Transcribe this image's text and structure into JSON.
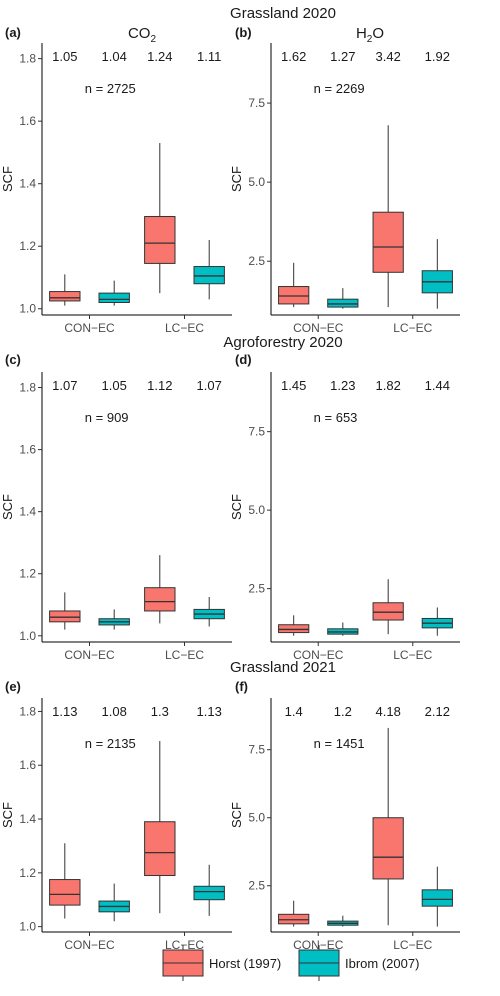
{
  "titles": {
    "row1": "Grassland 2020",
    "row2": "Agroforestry 2020",
    "row3": "Grassland 2021",
    "col1_prefix": "CO",
    "col1_sub": "2",
    "col2_prefix": "H",
    "col2_sub": "2",
    "col2_suffix": "O"
  },
  "legend": [
    {
      "label": "Horst (1997)",
      "color": "#F8766D"
    },
    {
      "label": "Ibrom (2007)",
      "color": "#00BFC4"
    }
  ],
  "chart_data": [
    {
      "type": "box",
      "panel": "(a)",
      "ylabel": "SCF",
      "ylim": [
        0.98,
        1.85
      ],
      "yticks": [
        "1.0",
        "1.2",
        "1.4",
        "1.6",
        "1.8"
      ],
      "categories": [
        "CON−EC",
        "LC−EC"
      ],
      "n_label": "n = 2725",
      "means": [
        "1.05",
        "1.04",
        "1.24",
        "1.11"
      ],
      "boxes": [
        {
          "category": "CON−EC",
          "series": "Horst (1997)",
          "lower_whisker": 1.01,
          "q1": 1.025,
          "median": 1.035,
          "q3": 1.055,
          "upper_whisker": 1.11
        },
        {
          "category": "CON−EC",
          "series": "Ibrom (2007)",
          "lower_whisker": 1.01,
          "q1": 1.02,
          "median": 1.03,
          "q3": 1.05,
          "upper_whisker": 1.09
        },
        {
          "category": "LC−EC",
          "series": "Horst (1997)",
          "lower_whisker": 1.05,
          "q1": 1.145,
          "median": 1.21,
          "q3": 1.295,
          "upper_whisker": 1.53
        },
        {
          "category": "LC−EC",
          "series": "Ibrom (2007)",
          "lower_whisker": 1.03,
          "q1": 1.08,
          "median": 1.105,
          "q3": 1.135,
          "upper_whisker": 1.22
        }
      ]
    },
    {
      "type": "box",
      "panel": "(b)",
      "ylabel": "SCF",
      "ylim": [
        0.8,
        9.4
      ],
      "yticks": [
        "2.5",
        "5.0",
        "7.5"
      ],
      "categories": [
        "CON−EC",
        "LC−EC"
      ],
      "n_label": "n = 2269",
      "means": [
        "1.62",
        "1.27",
        "3.42",
        "1.92"
      ],
      "boxes": [
        {
          "category": "CON−EC",
          "series": "Horst (1997)",
          "lower_whisker": 1.05,
          "q1": 1.15,
          "median": 1.4,
          "q3": 1.7,
          "upper_whisker": 2.45
        },
        {
          "category": "CON−EC",
          "series": "Ibrom (2007)",
          "lower_whisker": 1.0,
          "q1": 1.05,
          "median": 1.15,
          "q3": 1.3,
          "upper_whisker": 1.65
        },
        {
          "category": "LC−EC",
          "series": "Horst (1997)",
          "lower_whisker": 1.05,
          "q1": 2.15,
          "median": 2.95,
          "q3": 4.05,
          "upper_whisker": 6.8
        },
        {
          "category": "LC−EC",
          "series": "Ibrom (2007)",
          "lower_whisker": 1.0,
          "q1": 1.5,
          "median": 1.85,
          "q3": 2.2,
          "upper_whisker": 3.2
        }
      ]
    },
    {
      "type": "box",
      "panel": "(c)",
      "ylabel": "SCF",
      "ylim": [
        0.98,
        1.85
      ],
      "yticks": [
        "1.0",
        "1.2",
        "1.4",
        "1.6",
        "1.8"
      ],
      "categories": [
        "CON−EC",
        "LC−EC"
      ],
      "n_label": "n = 909",
      "means": [
        "1.07",
        "1.05",
        "1.12",
        "1.07"
      ],
      "boxes": [
        {
          "category": "CON−EC",
          "series": "Horst (1997)",
          "lower_whisker": 1.02,
          "q1": 1.045,
          "median": 1.06,
          "q3": 1.08,
          "upper_whisker": 1.14
        },
        {
          "category": "CON−EC",
          "series": "Ibrom (2007)",
          "lower_whisker": 1.02,
          "q1": 1.035,
          "median": 1.045,
          "q3": 1.055,
          "upper_whisker": 1.085
        },
        {
          "category": "LC−EC",
          "series": "Horst (1997)",
          "lower_whisker": 1.04,
          "q1": 1.08,
          "median": 1.11,
          "q3": 1.155,
          "upper_whisker": 1.26
        },
        {
          "category": "LC−EC",
          "series": "Ibrom (2007)",
          "lower_whisker": 1.03,
          "q1": 1.055,
          "median": 1.07,
          "q3": 1.085,
          "upper_whisker": 1.125
        }
      ]
    },
    {
      "type": "box",
      "panel": "(d)",
      "ylabel": "SCF",
      "ylim": [
        0.8,
        9.4
      ],
      "yticks": [
        "2.5",
        "5.0",
        "7.5"
      ],
      "categories": [
        "CON−EC",
        "LC−EC"
      ],
      "n_label": "n = 653",
      "means": [
        "1.45",
        "1.23",
        "1.82",
        "1.44"
      ],
      "boxes": [
        {
          "category": "CON−EC",
          "series": "Horst (1997)",
          "lower_whisker": 1.0,
          "q1": 1.1,
          "median": 1.2,
          "q3": 1.35,
          "upper_whisker": 1.65
        },
        {
          "category": "CON−EC",
          "series": "Ibrom (2007)",
          "lower_whisker": 1.0,
          "q1": 1.05,
          "median": 1.12,
          "q3": 1.22,
          "upper_whisker": 1.42
        },
        {
          "category": "LC−EC",
          "series": "Horst (1997)",
          "lower_whisker": 1.05,
          "q1": 1.5,
          "median": 1.75,
          "q3": 2.05,
          "upper_whisker": 2.8
        },
        {
          "category": "LC−EC",
          "series": "Ibrom (2007)",
          "lower_whisker": 1.0,
          "q1": 1.25,
          "median": 1.4,
          "q3": 1.55,
          "upper_whisker": 1.9
        }
      ]
    },
    {
      "type": "box",
      "panel": "(e)",
      "ylabel": "SCF",
      "ylim": [
        0.98,
        1.85
      ],
      "yticks": [
        "1.0",
        "1.2",
        "1.4",
        "1.6",
        "1.8"
      ],
      "categories": [
        "CON−EC",
        "LC−EC"
      ],
      "n_label": "n = 2135",
      "means": [
        "1.13",
        "1.08",
        "1.3",
        "1.13"
      ],
      "boxes": [
        {
          "category": "CON−EC",
          "series": "Horst (1997)",
          "lower_whisker": 1.03,
          "q1": 1.08,
          "median": 1.12,
          "q3": 1.175,
          "upper_whisker": 1.31
        },
        {
          "category": "CON−EC",
          "series": "Ibrom (2007)",
          "lower_whisker": 1.02,
          "q1": 1.055,
          "median": 1.075,
          "q3": 1.095,
          "upper_whisker": 1.16
        },
        {
          "category": "LC−EC",
          "series": "Horst (1997)",
          "lower_whisker": 1.05,
          "q1": 1.19,
          "median": 1.275,
          "q3": 1.39,
          "upper_whisker": 1.69
        },
        {
          "category": "LC−EC",
          "series": "Ibrom (2007)",
          "lower_whisker": 1.04,
          "q1": 1.1,
          "median": 1.13,
          "q3": 1.15,
          "upper_whisker": 1.23
        }
      ]
    },
    {
      "type": "box",
      "panel": "(f)",
      "ylabel": "SCF",
      "ylim": [
        0.8,
        9.4
      ],
      "yticks": [
        "2.5",
        "5.0",
        "7.5"
      ],
      "categories": [
        "CON−EC",
        "LC−EC"
      ],
      "n_label": "n = 1451",
      "means": [
        "1.4",
        "1.2",
        "4.18",
        "2.12"
      ],
      "boxes": [
        {
          "category": "CON−EC",
          "series": "Horst (1997)",
          "lower_whisker": 1.0,
          "q1": 1.1,
          "median": 1.25,
          "q3": 1.45,
          "upper_whisker": 1.95
        },
        {
          "category": "CON−EC",
          "series": "Ibrom (2007)",
          "lower_whisker": 1.0,
          "q1": 1.05,
          "median": 1.12,
          "q3": 1.2,
          "upper_whisker": 1.4
        },
        {
          "category": "LC−EC",
          "series": "Horst (1997)",
          "lower_whisker": 1.05,
          "q1": 2.75,
          "median": 3.55,
          "q3": 5.0,
          "upper_whisker": 8.3
        },
        {
          "category": "LC−EC",
          "series": "Ibrom (2007)",
          "lower_whisker": 1.0,
          "q1": 1.75,
          "median": 2.0,
          "q3": 2.35,
          "upper_whisker": 3.2
        }
      ]
    }
  ]
}
